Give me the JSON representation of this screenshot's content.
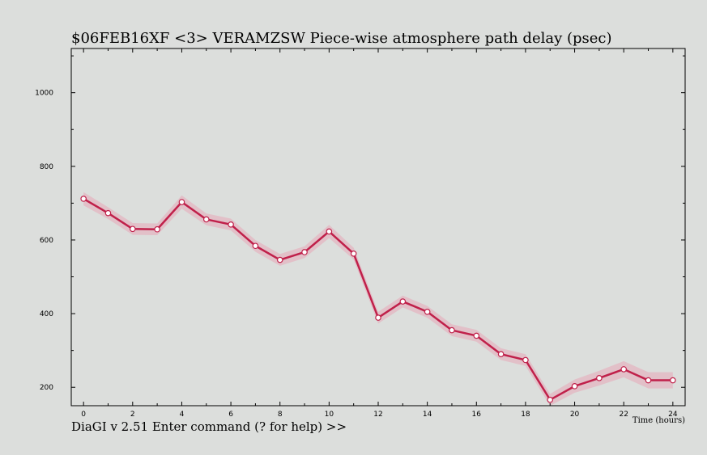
{
  "header": {
    "title": "$06FEB16XF <3>  VERAMZSW  Piece-wise atmosphere path delay (psec)"
  },
  "footer": {
    "command_prompt": "DiaGI v 2.51  Enter command (? for help) >>"
  },
  "colors": {
    "background": "#dcdedc",
    "line": "#c0204a",
    "band": "#e8a8b8",
    "marker_fill": "#ffffff"
  },
  "chart_data": {
    "type": "line",
    "title": "$06FEB16XF <3>  VERAMZSW  Piece-wise atmosphere path delay (psec)",
    "xlabel": "Time (hours)",
    "ylabel": "",
    "xlim": [
      -0.5,
      24.5
    ],
    "ylim": [
      150,
      1120
    ],
    "x_ticks": [
      "0",
      "2",
      "4",
      "6",
      "8",
      "10",
      "12",
      "14",
      "16",
      "18",
      "20",
      "22",
      "24"
    ],
    "y_ticks": [
      "200",
      "400",
      "600",
      "800",
      "1000"
    ],
    "grid": false,
    "series": [
      {
        "x": [
          0,
          1,
          2,
          3,
          4,
          5,
          6,
          7,
          8,
          9,
          10,
          11,
          12,
          13,
          14,
          15,
          16,
          17,
          18,
          19,
          20,
          21,
          22,
          23,
          24
        ],
        "values": [
          712,
          673,
          630,
          629,
          703,
          656,
          642,
          584,
          546,
          567,
          623,
          563,
          389,
          433,
          405,
          355,
          340,
          290,
          274,
          166,
          203,
          225,
          249,
          219,
          219
        ],
        "error": [
          18,
          16,
          16,
          16,
          18,
          16,
          16,
          16,
          16,
          16,
          18,
          16,
          16,
          16,
          16,
          16,
          16,
          16,
          16,
          16,
          18,
          20,
          22,
          22,
          22
        ]
      }
    ]
  }
}
